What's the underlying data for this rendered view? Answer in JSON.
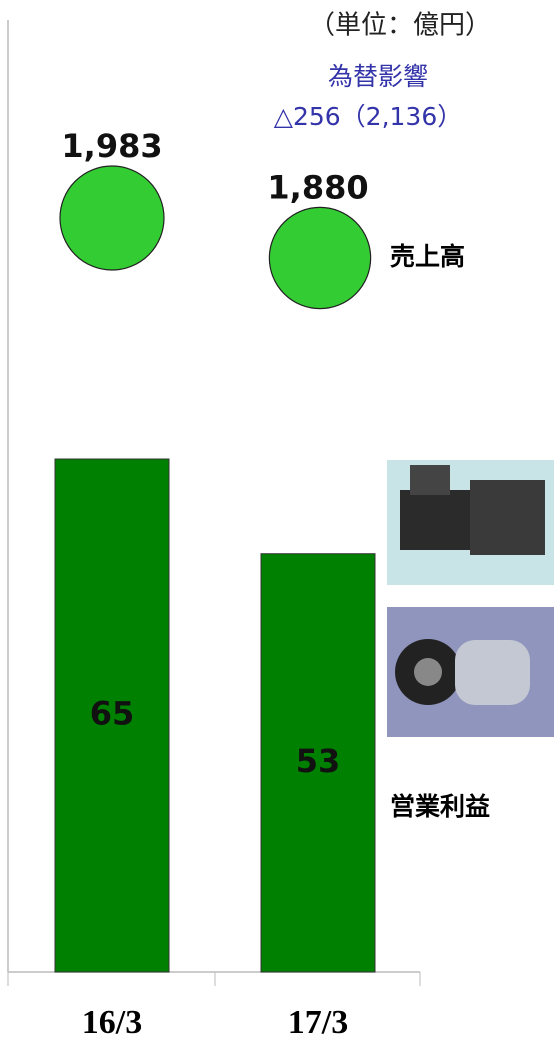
{
  "chart_data": {
    "type": "bar",
    "unit": "（単位：億円）",
    "annotation": [
      "為替影響",
      "△256（2,136）"
    ],
    "categories": [
      "16/3",
      "17/3"
    ],
    "series": [
      {
        "name": "売上高",
        "type": "scatter",
        "color": "#33cc33",
        "values": [
          1983,
          1880
        ],
        "value_labels": [
          "1,983",
          "1,880"
        ]
      },
      {
        "name": "営業利益",
        "type": "bar",
        "color": "#008000",
        "values": [
          65,
          53
        ]
      }
    ]
  }
}
